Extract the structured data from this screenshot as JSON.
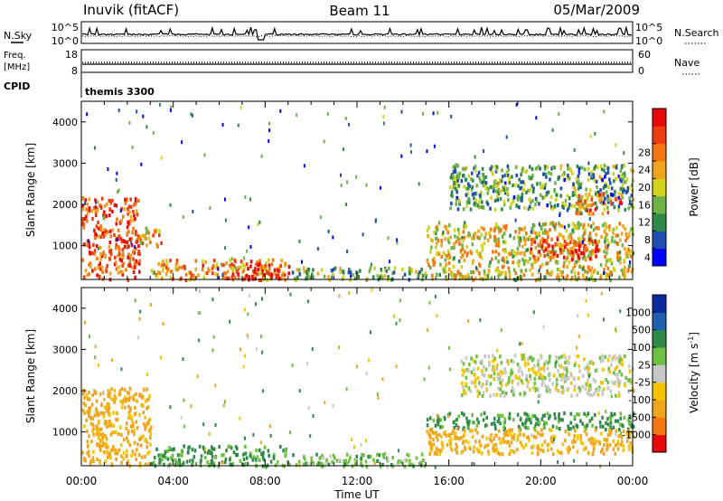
{
  "header": {
    "station": "Inuvik (fitACF)",
    "beam": "Beam 11",
    "date": "05/Mar/2009"
  },
  "noise_panel": {
    "left_label": "N.Sky",
    "right_label": "N.Search",
    "left_ticks": [
      "10^5",
      "10^0"
    ],
    "right_ticks": [
      "10^5",
      "10^0"
    ],
    "sky_line_style": "solid",
    "search_line_style": "dotted"
  },
  "freq_panel": {
    "left_label_1": "Freq.",
    "left_label_2": "[MHz]",
    "right_label": "Nave",
    "left_ticks": [
      "18",
      "8"
    ],
    "right_ticks": [
      "60",
      "0"
    ],
    "freq_line_style": "solid",
    "nave_line_style": "dotted"
  },
  "cpid_panel": {
    "label": "CPID",
    "mode_text": "themis 3300"
  },
  "chart_data": [
    {
      "type": "heatmap",
      "ylabel": "Slant Range [km]",
      "ylim": [
        180,
        4500
      ],
      "yticks": [
        1000,
        2000,
        3000,
        4000
      ],
      "xlim": [
        "00:00",
        "24:00"
      ],
      "colorbar": {
        "label": "Power [dB]",
        "colors": [
          "#0000ff",
          "#1f4fb0",
          "#2f8a4a",
          "#6db348",
          "#d2d219",
          "#f0a51f",
          "#f5760f",
          "#ef3c10",
          "#e80a0a"
        ],
        "tick_labels": [
          "4",
          "8",
          "12",
          "16",
          "20",
          "24",
          "28"
        ],
        "range": [
          0,
          30
        ]
      },
      "echo_regions": [
        {
          "t": [
            0.0,
            2.5
          ],
          "range_km": [
            200,
            2200
          ],
          "typical_power_db": 24
        },
        {
          "t": [
            2.5,
            3.5
          ],
          "range_km": [
            1000,
            1500
          ],
          "typical_power_db": 18
        },
        {
          "t": [
            3.0,
            9.0
          ],
          "range_km": [
            200,
            700
          ],
          "typical_power_db": 20
        },
        {
          "t": [
            6.5,
            9.0
          ],
          "range_km": [
            200,
            600
          ],
          "typical_power_db": 28
        },
        {
          "t": [
            9.0,
            15.0
          ],
          "range_km": [
            200,
            500
          ],
          "typical_power_db": 12
        },
        {
          "t": [
            15.0,
            24.0
          ],
          "range_km": [
            200,
            1600
          ],
          "typical_power_db": 16
        },
        {
          "t": [
            19.5,
            22.5
          ],
          "range_km": [
            700,
            1200
          ],
          "typical_power_db": 26
        },
        {
          "t": [
            16.0,
            24.0
          ],
          "range_km": [
            1900,
            3000
          ],
          "typical_power_db": 10
        },
        {
          "t": [
            21.5,
            23.5
          ],
          "range_km": [
            1800,
            2300
          ],
          "typical_power_db": 22
        }
      ]
    },
    {
      "type": "heatmap",
      "ylabel": "Slant Range [km]",
      "ylim": [
        180,
        4500
      ],
      "yticks": [
        1000,
        2000,
        3000,
        4000
      ],
      "xlim": [
        "00:00",
        "24:00"
      ],
      "xticks": [
        "00:00",
        "04:00",
        "08:00",
        "12:00",
        "16:00",
        "20:00",
        "00:00"
      ],
      "xlabel": "Time UT",
      "colorbar": {
        "label_main": "Velocity",
        "label_unit": "[m s",
        "label_sup": "-1",
        "label_end": "]",
        "colors": [
          "#e80a0a",
          "#f5760f",
          "#f0a51f",
          "#f5c400",
          "#c8c8c8",
          "#6ec040",
          "#2f8a4a",
          "#2060b0",
          "#0a2aa0"
        ],
        "tick_labels": [
          "-1000",
          "-500",
          "-100",
          "-25",
          "25",
          "100",
          "500",
          "1000"
        ],
        "ground_scatter_color": "#c8c8c8"
      },
      "echo_regions": [
        {
          "t": [
            0.0,
            3.0
          ],
          "range_km": [
            200,
            2100
          ],
          "typical_velocity_ms": -150
        },
        {
          "t": [
            3.0,
            9.0
          ],
          "range_km": [
            200,
            700
          ],
          "typical_velocity_ms": 120
        },
        {
          "t": [
            9.0,
            15.0
          ],
          "range_km": [
            200,
            500
          ],
          "typical_velocity_ms": 60
        },
        {
          "t": [
            15.0,
            24.0
          ],
          "range_km": [
            1100,
            1500
          ],
          "typical_velocity_ms": 150
        },
        {
          "t": [
            15.0,
            24.0
          ],
          "range_km": [
            500,
            1100
          ],
          "typical_velocity_ms": -150
        },
        {
          "t": [
            16.5,
            24.0
          ],
          "range_km": [
            1900,
            2900
          ],
          "typical_velocity_ms": 0
        }
      ]
    }
  ]
}
